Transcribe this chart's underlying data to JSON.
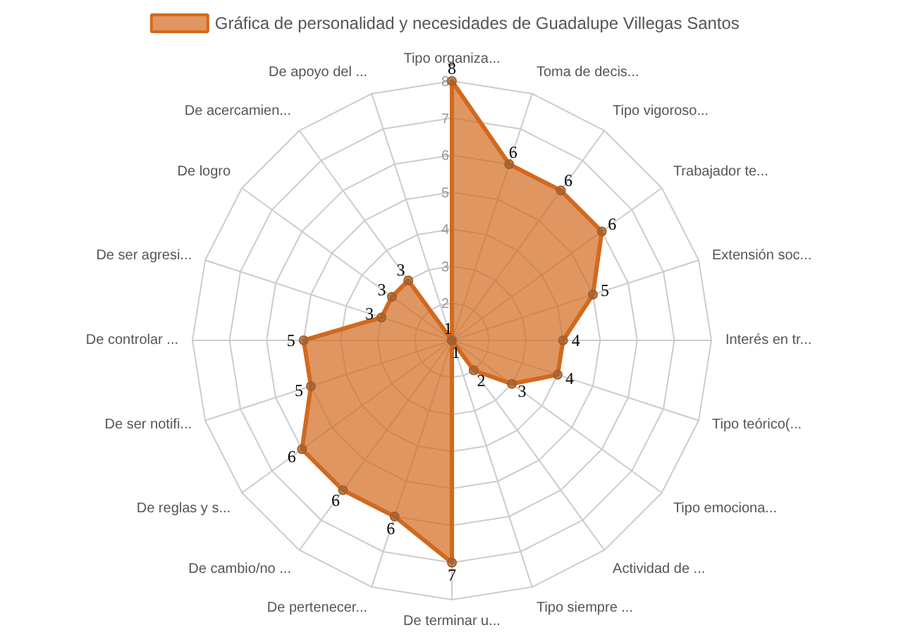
{
  "chart_data": {
    "type": "radar",
    "legend": "top",
    "categories": [
      "Tipo organiza...",
      "Toma de decis...",
      "Tipo vigoroso...",
      "Trabajador te...",
      "Extensión soc...",
      "Interés en tr...",
      "Tipo teórico(...",
      "Tipo emociona...",
      "Actividad de ...",
      "Tipo siempre ...",
      "De terminar u...",
      "De pertenecer...",
      "De cambio/no ...",
      "De reglas y s...",
      "De ser notifi...",
      "De controlar ...",
      "De ser agresi...",
      "De logro",
      "De acercamien...",
      "De apoyo del ..."
    ],
    "series": [
      {
        "name": "Gráfica de personalidad y necesidades de Guadalupe Villegas Santos",
        "color": "#d2691e",
        "values": [
          8,
          6,
          6,
          6,
          5,
          4,
          4,
          3,
          2,
          1,
          7,
          6,
          6,
          6,
          5,
          5,
          3,
          3,
          3,
          1
        ]
      }
    ],
    "ylim": [
      1,
      8
    ],
    "yticks": [
      2,
      3,
      4,
      5,
      6,
      7,
      8
    ],
    "data_labels": true,
    "marker": "circle",
    "grid": true
  }
}
